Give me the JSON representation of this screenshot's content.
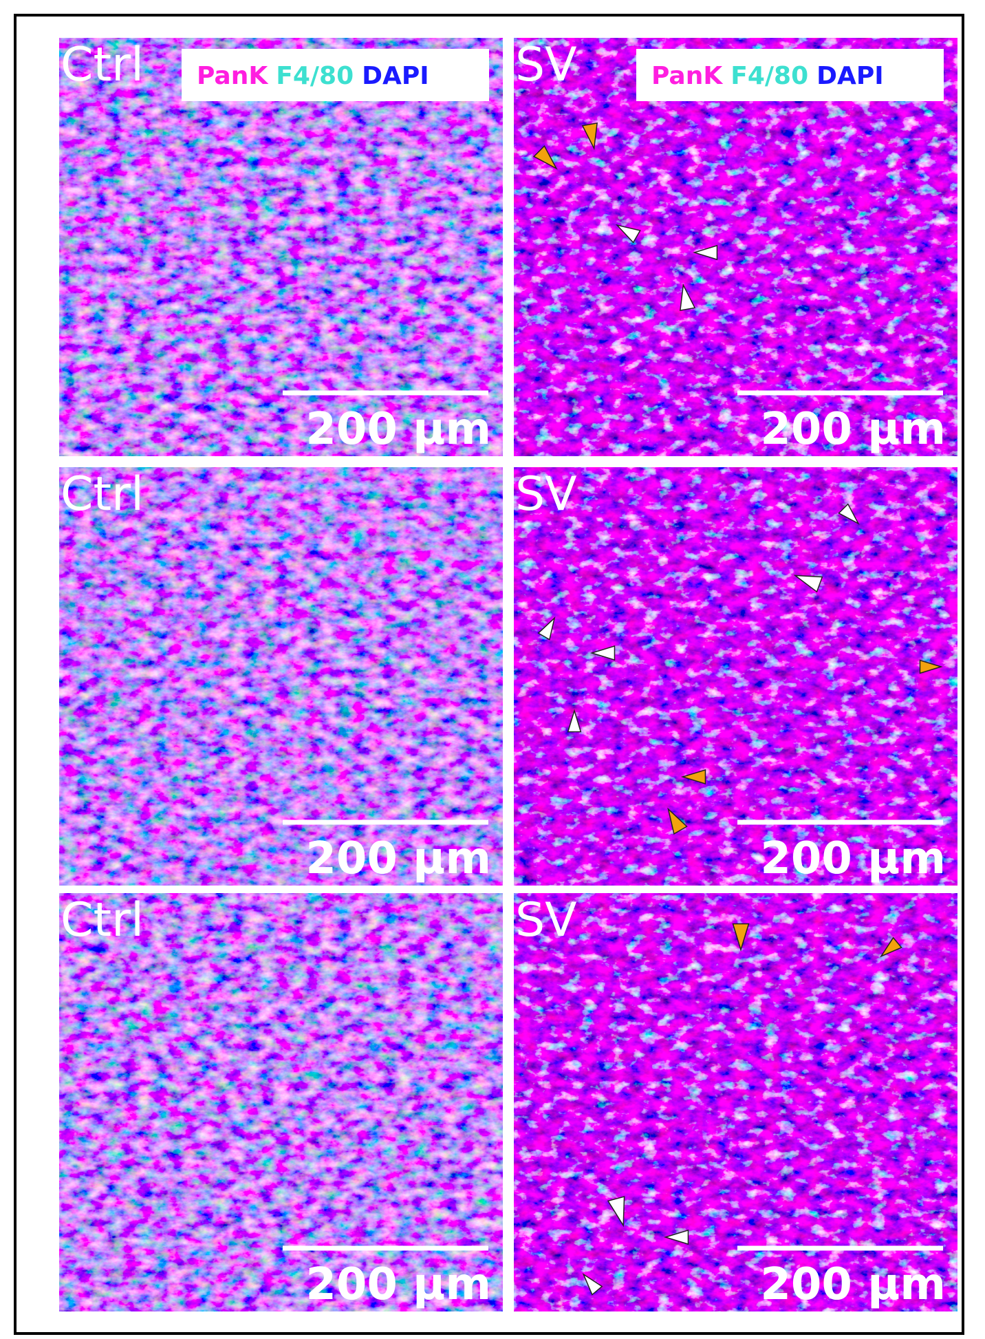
{
  "panels": [
    {
      "label": "Ctrl",
      "legend": [
        "PanK",
        "F4/80",
        "DAPI"
      ],
      "scale_bar": "200 µm"
    },
    {
      "label": "SV",
      "legend": [
        "PanK",
        "F4/80",
        "DAPI"
      ],
      "scale_bar": "200 µm"
    },
    {
      "label": "Ctrl",
      "scale_bar": "200 µm"
    },
    {
      "label": "SV",
      "scale_bar": "200 µm"
    },
    {
      "label": "Ctrl",
      "scale_bar": "200 µm"
    },
    {
      "label": "SV",
      "scale_bar": "200 µm"
    }
  ]
}
